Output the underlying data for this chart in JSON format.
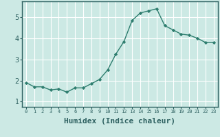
{
  "x": [
    0,
    1,
    2,
    3,
    4,
    5,
    6,
    7,
    8,
    9,
    10,
    11,
    12,
    13,
    14,
    15,
    16,
    17,
    18,
    19,
    20,
    21,
    22,
    23
  ],
  "y": [
    1.9,
    1.7,
    1.7,
    1.55,
    1.6,
    1.45,
    1.65,
    1.65,
    1.85,
    2.05,
    2.5,
    3.25,
    3.85,
    4.85,
    5.2,
    5.3,
    5.4,
    4.6,
    4.4,
    4.2,
    4.15,
    4.0,
    3.8,
    3.8
  ],
  "line_color": "#2d7d6e",
  "marker": "D",
  "marker_size": 2.2,
  "bg_color": "#cce9e4",
  "grid_color": "#ffffff",
  "xlabel": "Humidex (Indice chaleur)",
  "xlabel_fontsize": 8,
  "xlabel_weight": "bold",
  "ylabel_ticks": [
    1,
    2,
    3,
    4,
    5
  ],
  "xlim": [
    -0.5,
    23.5
  ],
  "ylim": [
    0.75,
    5.75
  ],
  "xticks": [
    0,
    1,
    2,
    3,
    4,
    5,
    6,
    7,
    8,
    9,
    10,
    11,
    12,
    13,
    14,
    15,
    16,
    17,
    18,
    19,
    20,
    21,
    22,
    23
  ]
}
